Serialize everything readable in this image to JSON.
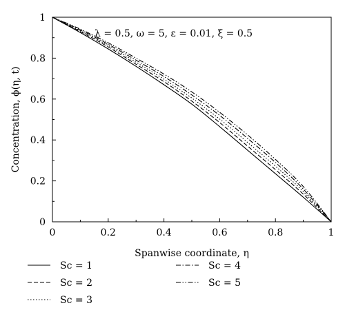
{
  "chart_data": {
    "type": "line",
    "xlabel": "Spanwise coordinate, η",
    "ylabel": "Concentration, ϕ(η, t)",
    "annotation": "λ = 0.5, ω = 5, ε = 0.01, ξ = 0.5",
    "xlim": [
      0,
      1
    ],
    "ylim": [
      0,
      1
    ],
    "xticks": [
      "0",
      "0.2",
      "0.4",
      "0.6",
      "0.8",
      "1"
    ],
    "yticks": [
      "0",
      "0.2",
      "0.4",
      "0.6",
      "0.8",
      "1"
    ],
    "grid": false,
    "legend_position": "bottom",
    "x": [
      0,
      0.1,
      0.2,
      0.3,
      0.4,
      0.5,
      0.6,
      0.7,
      0.8,
      0.9,
      1.0
    ],
    "series": [
      {
        "name": "Sc = 1",
        "dash": "solid",
        "values": [
          1.0,
          0.925,
          0.845,
          0.76,
          0.67,
          0.575,
          0.465,
          0.35,
          0.235,
          0.12,
          0.0
        ]
      },
      {
        "name": "Sc = 2",
        "dash": "dashed",
        "values": [
          1.0,
          0.93,
          0.855,
          0.77,
          0.685,
          0.59,
          0.485,
          0.37,
          0.255,
          0.135,
          0.0
        ]
      },
      {
        "name": "Sc = 3",
        "dash": "dotted",
        "values": [
          1.0,
          0.934,
          0.862,
          0.78,
          0.697,
          0.605,
          0.502,
          0.388,
          0.272,
          0.148,
          0.0
        ]
      },
      {
        "name": "Sc = 4",
        "dash": "dashdot",
        "values": [
          1.0,
          0.938,
          0.868,
          0.79,
          0.71,
          0.62,
          0.52,
          0.408,
          0.29,
          0.16,
          0.0
        ]
      },
      {
        "name": "Sc = 5",
        "dash": "dashdotdot",
        "values": [
          1.0,
          0.942,
          0.875,
          0.8,
          0.722,
          0.635,
          0.535,
          0.425,
          0.305,
          0.172,
          0.0
        ]
      }
    ]
  }
}
